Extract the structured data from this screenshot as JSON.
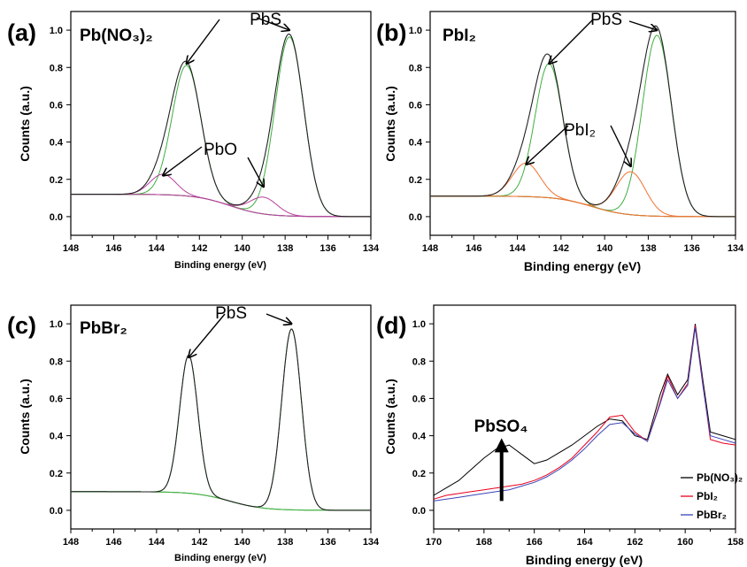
{
  "chart_data": [
    {
      "id": "a",
      "type": "line",
      "panel_label": "(a)",
      "title": "Pb(NO₃)₂",
      "xlabel": "Binding energy (eV)",
      "ylabel": "Counts (a.u.)",
      "xlim": [
        148,
        134
      ],
      "ylim": [
        -0.1,
        1.1
      ],
      "xticks": [
        148,
        146,
        144,
        142,
        140,
        138,
        136,
        134
      ],
      "yticks": [
        0.0,
        0.2,
        0.4,
        0.6,
        0.8,
        1.0
      ],
      "xtick_labels": [
        "148",
        "146",
        "144",
        "142",
        "140",
        "138",
        "136",
        "134"
      ],
      "ytick_labels": [
        "0.0",
        "0.2",
        "0.4",
        "0.6",
        "0.8",
        "1.0"
      ],
      "components": {
        "background": {
          "start": 0.12,
          "end": 0.0,
          "step_x": 140.6,
          "width": 1.6,
          "color": "#b8409d"
        },
        "peaks": [
          {
            "center": 142.6,
            "height": 0.7,
            "fwhm": 0.95,
            "color": "#3fae3f",
            "label_ref": "PbS"
          },
          {
            "center": 137.8,
            "height": 0.96,
            "fwhm": 0.95,
            "color": "#3fae3f",
            "label_ref": "PbS"
          },
          {
            "center": 143.7,
            "height": 0.11,
            "fwhm": 0.85,
            "color": "#b8409d",
            "label_ref": "PbO"
          },
          {
            "center": 139.0,
            "height": 0.09,
            "fwhm": 0.9,
            "color": "#b8409d",
            "label_ref": "PbO"
          }
        ],
        "envelope_color": "#222222"
      },
      "annotations": [
        {
          "text": "PbS",
          "target_x": 142.6,
          "target_y": 0.82
        },
        {
          "text": "PbS",
          "target_x": 137.8,
          "target_y": 1.0
        },
        {
          "text": "PbO",
          "target_x": 143.7,
          "target_y": 0.22
        },
        {
          "text": "PbO",
          "target_x": 139.0,
          "target_y": 0.16
        }
      ]
    },
    {
      "id": "b",
      "type": "line",
      "panel_label": "(b)",
      "title": "PbI₂",
      "xlabel": "Binding energy (eV)",
      "ylabel": "Counts (a.u.)",
      "xlim": [
        148,
        134
      ],
      "ylim": [
        -0.1,
        1.1
      ],
      "xticks": [
        148,
        146,
        144,
        142,
        140,
        138,
        136,
        134
      ],
      "yticks": [
        0.0,
        0.2,
        0.4,
        0.6,
        0.8,
        1.0
      ],
      "xtick_labels": [
        "148",
        "146",
        "144",
        "142",
        "140",
        "138",
        "136",
        "134"
      ],
      "ytick_labels": [
        "0.0",
        "0.2",
        "0.4",
        "0.6",
        "0.8",
        "1.0"
      ],
      "components": {
        "background": {
          "start": 0.11,
          "end": 0.0,
          "step_x": 140.6,
          "width": 1.6,
          "color": "#f07030"
        },
        "peaks": [
          {
            "center": 142.55,
            "height": 0.72,
            "fwhm": 0.9,
            "color": "#3fae3f",
            "label_ref": "PbS"
          },
          {
            "center": 137.6,
            "height": 0.97,
            "fwhm": 0.95,
            "color": "#3fae3f",
            "label_ref": "PbS"
          },
          {
            "center": 143.6,
            "height": 0.18,
            "fwhm": 0.9,
            "color": "#f07030",
            "label_ref": "PbI2"
          },
          {
            "center": 138.8,
            "height": 0.23,
            "fwhm": 0.95,
            "color": "#f07030",
            "label_ref": "PbI2"
          }
        ],
        "envelope_color": "#222222"
      },
      "annotations": [
        {
          "text": "PbS",
          "target_x": 142.55,
          "target_y": 0.82
        },
        {
          "text": "PbS",
          "target_x": 137.6,
          "target_y": 1.0
        },
        {
          "text": "PbI₂",
          "target_x": 143.6,
          "target_y": 0.28
        },
        {
          "text": "PbI₂",
          "target_x": 138.8,
          "target_y": 0.27
        }
      ]
    },
    {
      "id": "c",
      "type": "line",
      "panel_label": "(c)",
      "title": "PbBr₂",
      "xlabel": "Binding energy (eV)",
      "ylabel": "Counts (a.u.)",
      "xlim": [
        148,
        134
      ],
      "ylim": [
        -0.1,
        1.1
      ],
      "xticks": [
        148,
        146,
        144,
        142,
        140,
        138,
        136,
        134
      ],
      "yticks": [
        0.0,
        0.2,
        0.4,
        0.6,
        0.8,
        1.0
      ],
      "xtick_labels": [
        "148",
        "146",
        "144",
        "142",
        "140",
        "138",
        "136",
        "134"
      ],
      "ytick_labels": [
        "0.0",
        "0.2",
        "0.4",
        "0.6",
        "0.8",
        "1.0"
      ],
      "components": {
        "background": {
          "start": 0.1,
          "end": 0.0,
          "step_x": 140.6,
          "width": 1.6,
          "color": "#3fae3f"
        },
        "peaks": [
          {
            "center": 142.5,
            "height": 0.74,
            "fwhm": 0.6,
            "color": "#3fae3f",
            "label_ref": "PbS"
          },
          {
            "center": 137.7,
            "height": 0.97,
            "fwhm": 0.65,
            "color": "#3fae3f",
            "label_ref": "PbS"
          }
        ],
        "envelope_color": "#222222"
      },
      "annotations": [
        {
          "text": "PbS",
          "target_x": 142.5,
          "target_y": 0.82
        },
        {
          "text": "PbS",
          "target_x": 137.7,
          "target_y": 1.0
        }
      ]
    },
    {
      "id": "d",
      "type": "line",
      "panel_label": "(d)",
      "title": "",
      "xlabel": "Binding energy (eV)",
      "ylabel": "Counts (a.u.)",
      "xlim": [
        170,
        158
      ],
      "ylim": [
        -0.1,
        1.1
      ],
      "xticks": [
        170,
        168,
        166,
        164,
        162,
        160,
        158
      ],
      "yticks": [
        0.0,
        0.2,
        0.4,
        0.6,
        0.8,
        1.0
      ],
      "xtick_labels": [
        "170",
        "168",
        "166",
        "164",
        "162",
        "160",
        "158"
      ],
      "ytick_labels": [
        "0.0",
        "0.2",
        "0.4",
        "0.6",
        "0.8",
        "1.0"
      ],
      "legend_position": "bottom-right",
      "series": [
        {
          "name": "Pb(NO₃)₂",
          "color": "#000000",
          "x": [
            170,
            169.5,
            169,
            168.5,
            168,
            167.5,
            167,
            166.5,
            166,
            165.5,
            165,
            164.5,
            164,
            163.5,
            163,
            162.5,
            162,
            161.5,
            161,
            160.7,
            160.3,
            159.9,
            159.6,
            159.3,
            159,
            158.5,
            158
          ],
          "y": [
            0.08,
            0.12,
            0.16,
            0.22,
            0.28,
            0.33,
            0.35,
            0.3,
            0.25,
            0.27,
            0.31,
            0.35,
            0.4,
            0.45,
            0.49,
            0.48,
            0.4,
            0.38,
            0.62,
            0.73,
            0.62,
            0.7,
            1.0,
            0.7,
            0.42,
            0.4,
            0.38
          ]
        },
        {
          "name": "PbI₂",
          "color": "#e8001c",
          "x": [
            170,
            169.5,
            169,
            168.5,
            168,
            167.5,
            167,
            166.5,
            166,
            165.5,
            165,
            164.5,
            164,
            163.5,
            163,
            162.5,
            162,
            161.5,
            161,
            160.7,
            160.3,
            159.9,
            159.6,
            159.3,
            159,
            158.5,
            158
          ],
          "y": [
            0.06,
            0.08,
            0.09,
            0.1,
            0.11,
            0.12,
            0.13,
            0.14,
            0.16,
            0.19,
            0.23,
            0.28,
            0.35,
            0.42,
            0.5,
            0.51,
            0.42,
            0.37,
            0.58,
            0.72,
            0.6,
            0.68,
            0.99,
            0.68,
            0.38,
            0.36,
            0.35
          ]
        },
        {
          "name": "PbBr₂",
          "color": "#3a44b8",
          "x": [
            170,
            169.5,
            169,
            168.5,
            168,
            167.5,
            167,
            166.5,
            166,
            165.5,
            165,
            164.5,
            164,
            163.5,
            163,
            162.5,
            162,
            161.5,
            161,
            160.7,
            160.3,
            159.9,
            159.6,
            159.3,
            159,
            158.5,
            158
          ],
          "y": [
            0.05,
            0.06,
            0.07,
            0.08,
            0.09,
            0.1,
            0.11,
            0.13,
            0.15,
            0.18,
            0.22,
            0.27,
            0.33,
            0.4,
            0.46,
            0.47,
            0.41,
            0.37,
            0.57,
            0.7,
            0.6,
            0.67,
            0.98,
            0.67,
            0.4,
            0.38,
            0.36
          ]
        }
      ],
      "annotations": [
        {
          "text": "PbSO₄",
          "target_x": 167.3,
          "target_y": 0.33
        }
      ]
    }
  ]
}
